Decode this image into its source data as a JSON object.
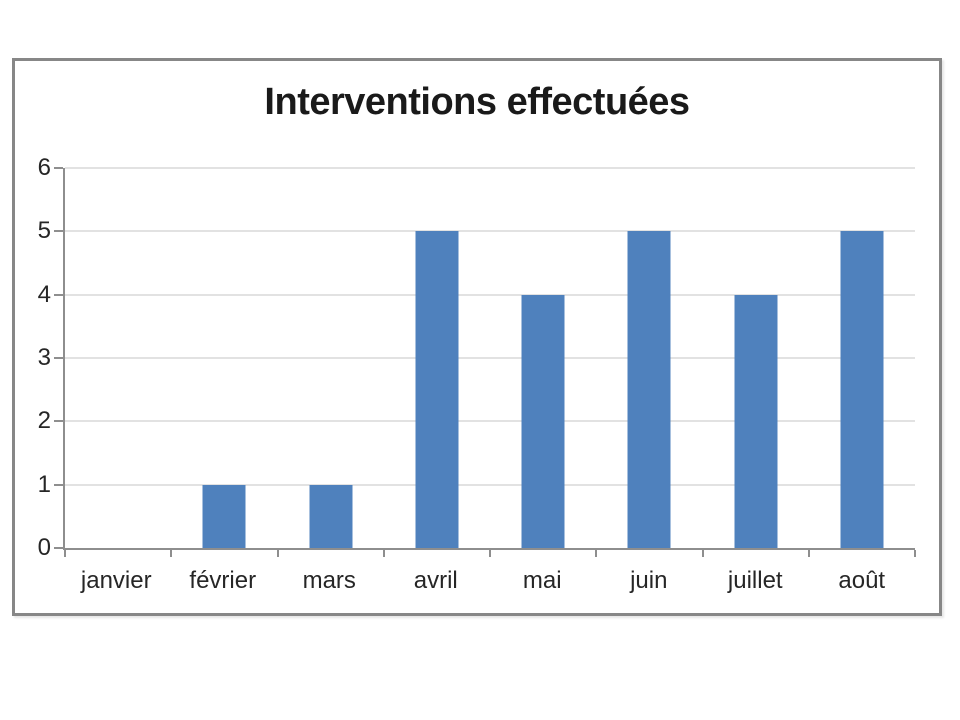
{
  "chart_data": {
    "type": "bar",
    "title": "Interventions effectuées",
    "categories": [
      "janvier",
      "février",
      "mars",
      "avril",
      "mai",
      "juin",
      "juillet",
      "août"
    ],
    "values": [
      0,
      1,
      1,
      5,
      4,
      5,
      4,
      5
    ],
    "xlabel": "",
    "ylabel": "",
    "ylim": [
      0,
      6
    ],
    "yticks": [
      0,
      1,
      2,
      3,
      4,
      5,
      6
    ],
    "grid": "horizontal",
    "legend_position": "none",
    "colors": {
      "bar": "#4F81BD",
      "gridline": "#C4C4C4",
      "axis": "#8E8E8E",
      "frame_border": "#878787",
      "title_text": "#1A1A1A",
      "tick_text": "#262626",
      "background": "#FFFFFF"
    }
  }
}
